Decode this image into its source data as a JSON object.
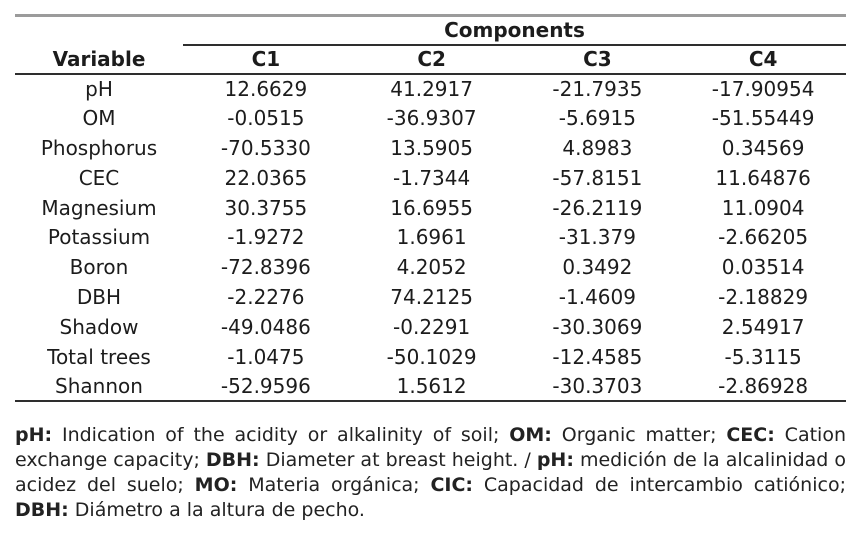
{
  "table": {
    "group_header": "Components",
    "variable_header": "Variable",
    "columns": [
      "C1",
      "C2",
      "C3",
      "C4"
    ],
    "rows": [
      {
        "variable": "pH",
        "values": [
          "12.6629",
          "41.2917",
          "-21.7935",
          "-17.90954"
        ]
      },
      {
        "variable": "OM",
        "values": [
          "-0.0515",
          "-36.9307",
          "-5.6915",
          "-51.55449"
        ]
      },
      {
        "variable": "Phosphorus",
        "values": [
          "-70.5330",
          "13.5905",
          "4.8983",
          "0.34569"
        ]
      },
      {
        "variable": "CEC",
        "values": [
          "22.0365",
          "-1.7344",
          "-57.8151",
          "11.64876"
        ]
      },
      {
        "variable": "Magnesium",
        "values": [
          "30.3755",
          "16.6955",
          "-26.2119",
          "11.0904"
        ]
      },
      {
        "variable": "Potassium",
        "values": [
          "-1.9272",
          "1.6961",
          "-31.379",
          "-2.66205"
        ]
      },
      {
        "variable": "Boron",
        "values": [
          "-72.8396",
          "4.2052",
          "0.3492",
          "0.03514"
        ]
      },
      {
        "variable": "DBH",
        "values": [
          "-2.2276",
          "74.2125",
          "-1.4609",
          "-2.18829"
        ]
      },
      {
        "variable": "Shadow",
        "values": [
          "-49.0486",
          "-0.2291",
          "-30.3069",
          "2.54917"
        ]
      },
      {
        "variable": "Total trees",
        "values": [
          "-1.0475",
          "-50.1029",
          "-12.4585",
          "-5.3115"
        ]
      },
      {
        "variable": "Shannon",
        "values": [
          "-52.9596",
          "1.5612",
          "-30.3703",
          "-2.86928"
        ]
      }
    ]
  },
  "footnote": {
    "segments": [
      {
        "t": "pH:",
        "b": true
      },
      {
        "t": " Indication of the acidity or alkalinity of soil; ",
        "b": false
      },
      {
        "t": "OM:",
        "b": true
      },
      {
        "t": " Organic matter; ",
        "b": false
      },
      {
        "t": "CEC:",
        "b": true
      },
      {
        "t": " Cation exchange capacity; ",
        "b": false
      },
      {
        "t": "DBH:",
        "b": true
      },
      {
        "t": " Diameter at breast height. / ",
        "b": false
      },
      {
        "t": "pH:",
        "b": true
      },
      {
        "t": " medición de la alcalinidad o acidez del suelo; ",
        "b": false
      },
      {
        "t": "MO:",
        "b": true
      },
      {
        "t": " Materia orgánica; ",
        "b": false
      },
      {
        "t": "CIC:",
        "b": true
      },
      {
        "t": " Capacidad de intercambio catiónico; ",
        "b": false
      },
      {
        "t": "DBH:",
        "b": true
      },
      {
        "t": " Diámetro a la altura de pecho.",
        "b": false
      }
    ]
  },
  "colors": {
    "background": "#ffffff",
    "text": "#1c1c1c",
    "rule_dark": "#2e2e2e",
    "rule_light": "#9b9b9b"
  }
}
